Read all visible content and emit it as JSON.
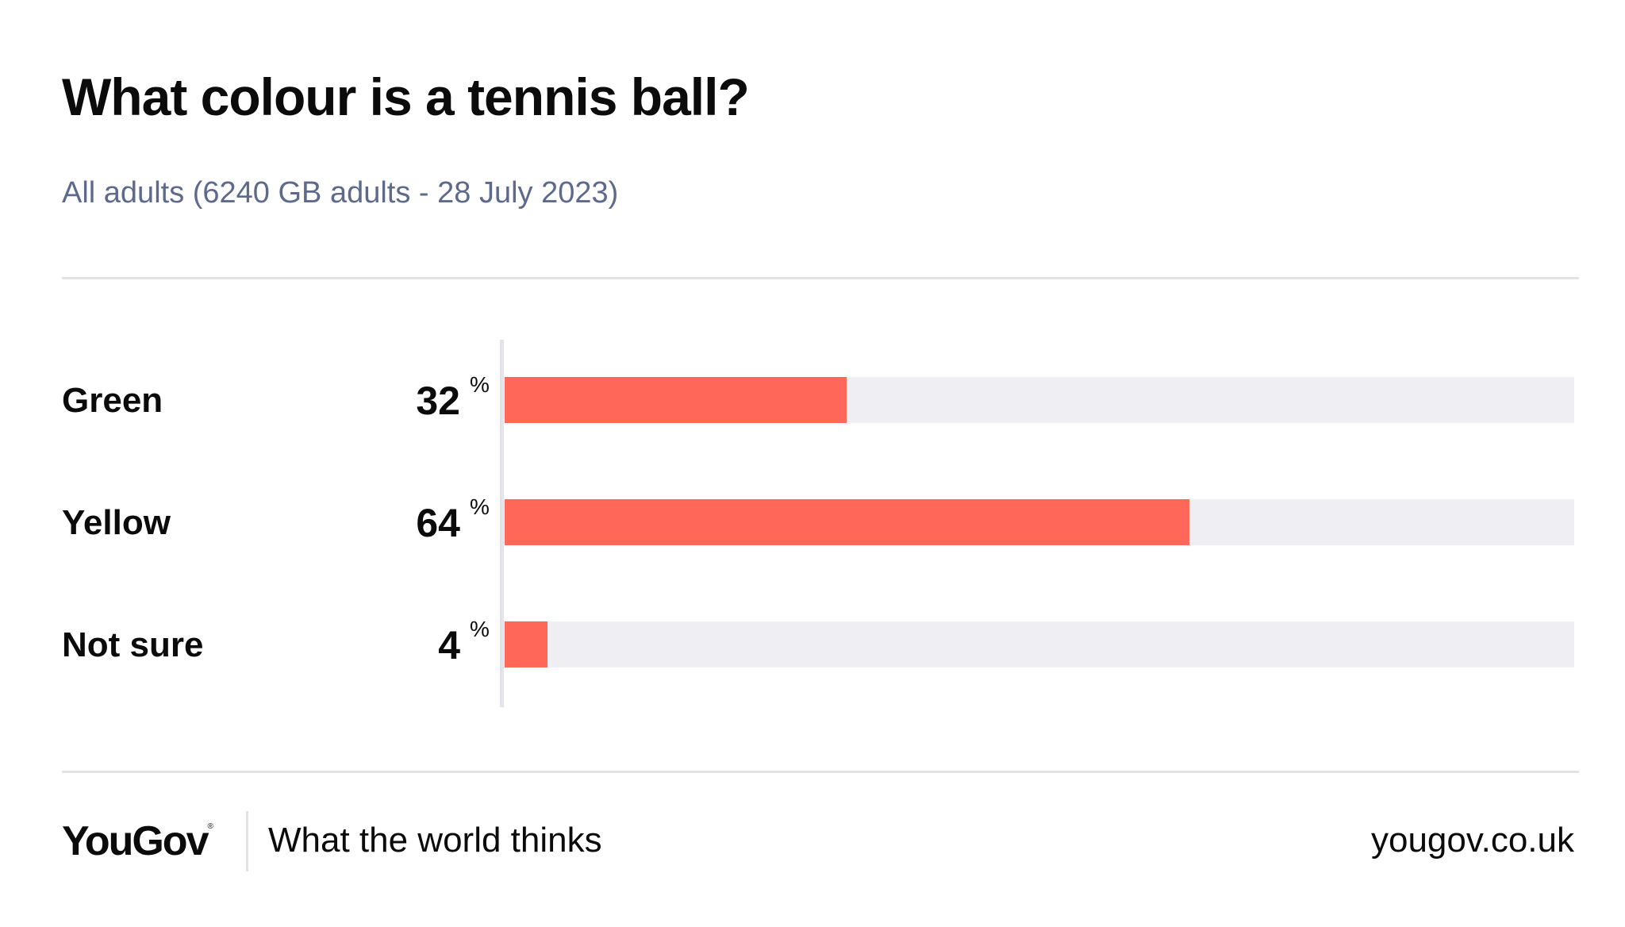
{
  "header": {
    "title": "What colour is a tennis ball?",
    "subtitle": "All adults (6240 GB adults - 28 July 2023)"
  },
  "chart_data": {
    "type": "bar",
    "orientation": "horizontal",
    "title": "What colour is a tennis ball?",
    "subtitle": "All adults (6240 GB adults - 28 July 2023)",
    "categories": [
      "Green",
      "Yellow",
      "Not sure"
    ],
    "values": [
      32,
      64,
      4
    ],
    "value_labels": [
      "32",
      "64",
      "4"
    ],
    "unit": "%",
    "xlim": [
      0,
      100
    ],
    "grid": false,
    "bar_color": "#ff6859",
    "track_color": "#efeff3"
  },
  "footer": {
    "brand": "YouGov",
    "brand_mark": "®",
    "tagline": "What the world thinks",
    "url": "yougov.co.uk"
  }
}
